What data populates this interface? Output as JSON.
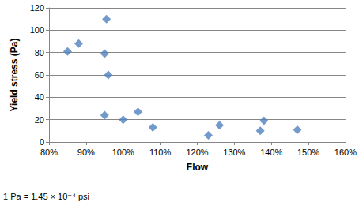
{
  "chart_data": {
    "type": "scatter",
    "x_label": "Flow",
    "y_label": "Yield stress (Pa)",
    "note": "1 Pa = 1.45 × 10⁻⁴ psi",
    "x": [
      85,
      88,
      95.5,
      95,
      96,
      95,
      100,
      104,
      108,
      123,
      126,
      137,
      138,
      147
    ],
    "values": [
      81,
      88,
      110,
      79,
      60,
      24,
      20,
      27,
      13,
      6,
      15,
      10,
      19,
      11
    ],
    "color": "#4f81bd",
    "marker": "diamond",
    "xlim": [
      80,
      160
    ],
    "xticks": [
      {
        "value": 80,
        "label": "80%"
      },
      {
        "value": 90,
        "label": "90%"
      },
      {
        "value": 100,
        "label": "100%"
      },
      {
        "value": 110,
        "label": "110%"
      },
      {
        "value": 120,
        "label": "120%"
      },
      {
        "value": 130,
        "label": "130%"
      },
      {
        "value": 140,
        "label": "140%"
      },
      {
        "value": 150,
        "label": "150%"
      },
      {
        "value": 160,
        "label": "160%"
      }
    ],
    "ylim": [
      0,
      120
    ],
    "yticks": [
      0,
      20,
      40,
      60,
      80,
      100,
      120
    ],
    "grid": "y"
  }
}
